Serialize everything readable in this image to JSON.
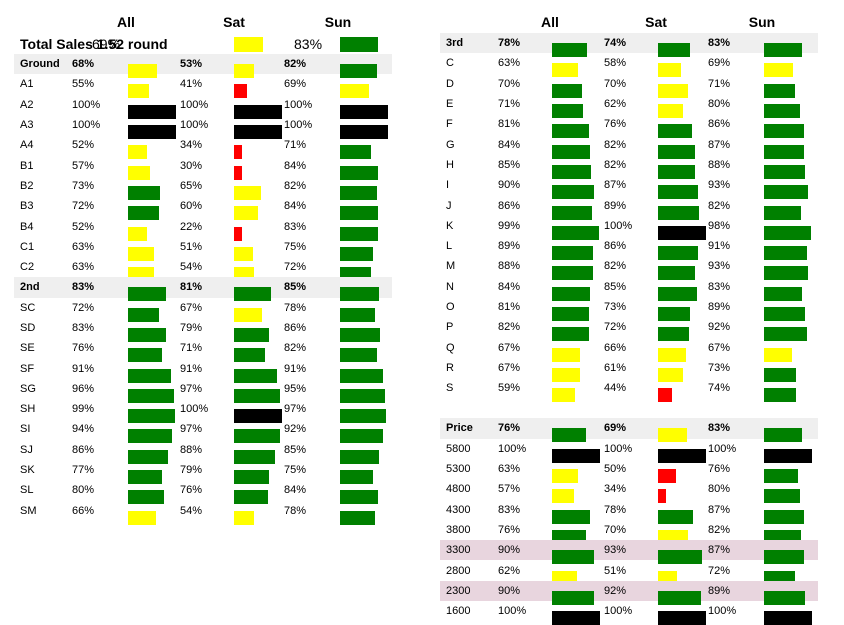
{
  "colors": {
    "green": "#008000",
    "yellow": "#ffff00",
    "red": "#ff0000",
    "black": "#000000"
  },
  "left": {
    "headers": {
      "all": "All",
      "sat": "Sat",
      "sun": "Sun"
    },
    "rows": [
      {
        "label": "Total Sales 1.52 round",
        "style": "total",
        "all": {
          "v": "69%",
          "c": "yellow",
          "f": 0.69
        },
        "sat": {
          "v": "",
          "c": "",
          "f": 0
        },
        "sun": {
          "v": "83%",
          "c": "green",
          "f": 0.83
        },
        "alt": {
          "all": null,
          "sat": {
            "c": "yellow",
            "f": 0.69
          }
        }
      },
      {
        "label": "Ground",
        "style": "bold shaded",
        "all": {
          "v": "68%",
          "c": "yellow",
          "f": 0.68
        },
        "sat": {
          "v": "53%",
          "c": "yellow",
          "f": 0.53
        },
        "sun": {
          "v": "82%",
          "c": "green",
          "f": 0.82
        }
      },
      {
        "label": "A1",
        "all": {
          "v": "55%",
          "c": "yellow",
          "f": 0.55
        },
        "sat": {
          "v": "41%",
          "c": "red",
          "f": 0.41
        },
        "sun": {
          "v": "69%",
          "c": "yellow",
          "f": 0.69
        }
      },
      {
        "label": "A2",
        "all": {
          "v": "100%",
          "c": "black",
          "f": 1.0
        },
        "sat": {
          "v": "100%",
          "c": "black",
          "f": 1.0
        },
        "sun": {
          "v": "100%",
          "c": "black",
          "f": 1.0
        }
      },
      {
        "label": "A3",
        "all": {
          "v": "100%",
          "c": "black",
          "f": 1.0
        },
        "sat": {
          "v": "100%",
          "c": "black",
          "f": 1.0
        },
        "sun": {
          "v": "100%",
          "c": "black",
          "f": 1.0
        }
      },
      {
        "label": "A4",
        "all": {
          "v": "52%",
          "c": "yellow",
          "f": 0.52
        },
        "sat": {
          "v": "34%",
          "c": "red",
          "f": 0.34
        },
        "sun": {
          "v": "71%",
          "c": "green",
          "f": 0.71
        }
      },
      {
        "label": "B1",
        "all": {
          "v": "57%",
          "c": "yellow",
          "f": 0.57
        },
        "sat": {
          "v": "30%",
          "c": "red",
          "f": 0.3
        },
        "sun": {
          "v": "84%",
          "c": "green",
          "f": 0.84
        }
      },
      {
        "label": "B2",
        "all": {
          "v": "73%",
          "c": "green",
          "f": 0.73
        },
        "sat": {
          "v": "65%",
          "c": "yellow",
          "f": 0.65
        },
        "sun": {
          "v": "82%",
          "c": "green",
          "f": 0.82
        }
      },
      {
        "label": "B3",
        "all": {
          "v": "72%",
          "c": "green",
          "f": 0.72
        },
        "sat": {
          "v": "60%",
          "c": "yellow",
          "f": 0.6
        },
        "sun": {
          "v": "84%",
          "c": "green",
          "f": 0.84
        }
      },
      {
        "label": "B4",
        "all": {
          "v": "52%",
          "c": "yellow",
          "f": 0.52
        },
        "sat": {
          "v": "22%",
          "c": "red",
          "f": 0.22
        },
        "sun": {
          "v": "83%",
          "c": "green",
          "f": 0.83
        }
      },
      {
        "label": "C1",
        "all": {
          "v": "63%",
          "c": "yellow",
          "f": 0.63
        },
        "sat": {
          "v": "51%",
          "c": "yellow",
          "f": 0.51
        },
        "sun": {
          "v": "75%",
          "c": "green",
          "f": 0.75
        }
      },
      {
        "label": "C2",
        "all": {
          "v": "63%",
          "c": "yellow",
          "f": 0.63
        },
        "sat": {
          "v": "54%",
          "c": "yellow",
          "f": 0.54
        },
        "sun": {
          "v": "72%",
          "c": "green",
          "f": 0.72
        }
      },
      {
        "label": "2nd",
        "style": "bold shaded",
        "all": {
          "v": "83%",
          "c": "green",
          "f": 0.83
        },
        "sat": {
          "v": "81%",
          "c": "green",
          "f": 0.81
        },
        "sun": {
          "v": "85%",
          "c": "green",
          "f": 0.85
        }
      },
      {
        "label": "SC",
        "all": {
          "v": "72%",
          "c": "green",
          "f": 0.72
        },
        "sat": {
          "v": "67%",
          "c": "yellow",
          "f": 0.67
        },
        "sun": {
          "v": "78%",
          "c": "green",
          "f": 0.78
        }
      },
      {
        "label": "SD",
        "all": {
          "v": "83%",
          "c": "green",
          "f": 0.83
        },
        "sat": {
          "v": "79%",
          "c": "green",
          "f": 0.79
        },
        "sun": {
          "v": "86%",
          "c": "green",
          "f": 0.86
        }
      },
      {
        "label": "SE",
        "all": {
          "v": "76%",
          "c": "green",
          "f": 0.76
        },
        "sat": {
          "v": "71%",
          "c": "green",
          "f": 0.71
        },
        "sun": {
          "v": "82%",
          "c": "green",
          "f": 0.82
        }
      },
      {
        "label": "SF",
        "all": {
          "v": "91%",
          "c": "green",
          "f": 0.91
        },
        "sat": {
          "v": "91%",
          "c": "green",
          "f": 0.91
        },
        "sun": {
          "v": "91%",
          "c": "green",
          "f": 0.91
        }
      },
      {
        "label": "SG",
        "all": {
          "v": "96%",
          "c": "green",
          "f": 0.96
        },
        "sat": {
          "v": "97%",
          "c": "green",
          "f": 0.97
        },
        "sun": {
          "v": "95%",
          "c": "green",
          "f": 0.95
        }
      },
      {
        "label": "SH",
        "all": {
          "v": "99%",
          "c": "green",
          "f": 0.99
        },
        "sat": {
          "v": "100%",
          "c": "black",
          "f": 1.0
        },
        "sun": {
          "v": "97%",
          "c": "green",
          "f": 0.97
        }
      },
      {
        "label": "SI",
        "all": {
          "v": "94%",
          "c": "green",
          "f": 0.94
        },
        "sat": {
          "v": "97%",
          "c": "green",
          "f": 0.97
        },
        "sun": {
          "v": "92%",
          "c": "green",
          "f": 0.92
        }
      },
      {
        "label": "SJ",
        "all": {
          "v": "86%",
          "c": "green",
          "f": 0.86
        },
        "sat": {
          "v": "88%",
          "c": "green",
          "f": 0.88
        },
        "sun": {
          "v": "85%",
          "c": "green",
          "f": 0.85
        }
      },
      {
        "label": "SK",
        "all": {
          "v": "77%",
          "c": "green",
          "f": 0.77
        },
        "sat": {
          "v": "79%",
          "c": "green",
          "f": 0.79
        },
        "sun": {
          "v": "75%",
          "c": "green",
          "f": 0.75
        }
      },
      {
        "label": "SL",
        "all": {
          "v": "80%",
          "c": "green",
          "f": 0.8
        },
        "sat": {
          "v": "76%",
          "c": "green",
          "f": 0.76
        },
        "sun": {
          "v": "84%",
          "c": "green",
          "f": 0.84
        }
      },
      {
        "label": "SM",
        "all": {
          "v": "66%",
          "c": "yellow",
          "f": 0.66
        },
        "sat": {
          "v": "54%",
          "c": "yellow",
          "f": 0.54
        },
        "sun": {
          "v": "78%",
          "c": "green",
          "f": 0.78
        }
      }
    ]
  },
  "right": {
    "headers": {
      "all": "All",
      "sat": "Sat",
      "sun": "Sun"
    },
    "rows": [
      {
        "label": "3rd",
        "style": "bold shaded",
        "all": {
          "v": "78%",
          "c": "green",
          "f": 0.78
        },
        "sat": {
          "v": "74%",
          "c": "green",
          "f": 0.74
        },
        "sun": {
          "v": "83%",
          "c": "green",
          "f": 0.83
        }
      },
      {
        "label": "C",
        "all": {
          "v": "63%",
          "c": "yellow",
          "f": 0.63
        },
        "sat": {
          "v": "58%",
          "c": "yellow",
          "f": 0.58
        },
        "sun": {
          "v": "69%",
          "c": "yellow",
          "f": 0.69
        }
      },
      {
        "label": "D",
        "all": {
          "v": "70%",
          "c": "green",
          "f": 0.7
        },
        "sat": {
          "v": "70%",
          "c": "yellow",
          "f": 0.7
        },
        "sun": {
          "v": "71%",
          "c": "green",
          "f": 0.71
        }
      },
      {
        "label": "E",
        "all": {
          "v": "71%",
          "c": "green",
          "f": 0.71
        },
        "sat": {
          "v": "62%",
          "c": "yellow",
          "f": 0.62
        },
        "sun": {
          "v": "80%",
          "c": "green",
          "f": 0.8
        }
      },
      {
        "label": "F",
        "all": {
          "v": "81%",
          "c": "green",
          "f": 0.81
        },
        "sat": {
          "v": "76%",
          "c": "green",
          "f": 0.76
        },
        "sun": {
          "v": "86%",
          "c": "green",
          "f": 0.86
        }
      },
      {
        "label": "G",
        "all": {
          "v": "84%",
          "c": "green",
          "f": 0.84
        },
        "sat": {
          "v": "82%",
          "c": "green",
          "f": 0.82
        },
        "sun": {
          "v": "87%",
          "c": "green",
          "f": 0.87
        }
      },
      {
        "label": "H",
        "all": {
          "v": "85%",
          "c": "green",
          "f": 0.85
        },
        "sat": {
          "v": "82%",
          "c": "green",
          "f": 0.82
        },
        "sun": {
          "v": "88%",
          "c": "green",
          "f": 0.88
        }
      },
      {
        "label": "I",
        "all": {
          "v": "90%",
          "c": "green",
          "f": 0.9
        },
        "sat": {
          "v": "87%",
          "c": "green",
          "f": 0.87
        },
        "sun": {
          "v": "93%",
          "c": "green",
          "f": 0.93
        }
      },
      {
        "label": "J",
        "all": {
          "v": "86%",
          "c": "green",
          "f": 0.86
        },
        "sat": {
          "v": "89%",
          "c": "green",
          "f": 0.89
        },
        "sun": {
          "v": "82%",
          "c": "green",
          "f": 0.82
        }
      },
      {
        "label": "K",
        "all": {
          "v": "99%",
          "c": "green",
          "f": 0.99
        },
        "sat": {
          "v": "100%",
          "c": "black",
          "f": 1.0
        },
        "sun": {
          "v": "98%",
          "c": "green",
          "f": 0.98
        }
      },
      {
        "label": "L",
        "all": {
          "v": "89%",
          "c": "green",
          "f": 0.89
        },
        "sat": {
          "v": "86%",
          "c": "green",
          "f": 0.86
        },
        "sun": {
          "v": "91%",
          "c": "green",
          "f": 0.91
        }
      },
      {
        "label": "M",
        "all": {
          "v": "88%",
          "c": "green",
          "f": 0.88
        },
        "sat": {
          "v": "82%",
          "c": "green",
          "f": 0.82
        },
        "sun": {
          "v": "93%",
          "c": "green",
          "f": 0.93
        }
      },
      {
        "label": "N",
        "all": {
          "v": "84%",
          "c": "green",
          "f": 0.84
        },
        "sat": {
          "v": "85%",
          "c": "green",
          "f": 0.85
        },
        "sun": {
          "v": "83%",
          "c": "green",
          "f": 0.83
        }
      },
      {
        "label": "O",
        "all": {
          "v": "81%",
          "c": "green",
          "f": 0.81
        },
        "sat": {
          "v": "73%",
          "c": "green",
          "f": 0.73
        },
        "sun": {
          "v": "89%",
          "c": "green",
          "f": 0.89
        }
      },
      {
        "label": "P",
        "all": {
          "v": "82%",
          "c": "green",
          "f": 0.82
        },
        "sat": {
          "v": "72%",
          "c": "green",
          "f": 0.72
        },
        "sun": {
          "v": "92%",
          "c": "green",
          "f": 0.92
        }
      },
      {
        "label": "Q",
        "all": {
          "v": "67%",
          "c": "yellow",
          "f": 0.67
        },
        "sat": {
          "v": "66%",
          "c": "yellow",
          "f": 0.66
        },
        "sun": {
          "v": "67%",
          "c": "yellow",
          "f": 0.67
        }
      },
      {
        "label": "R",
        "all": {
          "v": "67%",
          "c": "yellow",
          "f": 0.67
        },
        "sat": {
          "v": "61%",
          "c": "yellow",
          "f": 0.61
        },
        "sun": {
          "v": "73%",
          "c": "green",
          "f": 0.73
        }
      },
      {
        "label": "S",
        "all": {
          "v": "59%",
          "c": "yellow",
          "f": 0.59
        },
        "sat": {
          "v": "44%",
          "c": "red",
          "f": 0.44
        },
        "sun": {
          "v": "74%",
          "c": "green",
          "f": 0.74
        }
      },
      {
        "label": "",
        "style": "spacer"
      },
      {
        "label": "Price",
        "style": "bold shaded",
        "all": {
          "v": "76%",
          "c": "green",
          "f": 0.76
        },
        "sat": {
          "v": "69%",
          "c": "yellow",
          "f": 0.69
        },
        "sun": {
          "v": "83%",
          "c": "green",
          "f": 0.83
        }
      },
      {
        "label": "5800",
        "all": {
          "v": "100%",
          "c": "black",
          "f": 1.0
        },
        "sat": {
          "v": "100%",
          "c": "black",
          "f": 1.0
        },
        "sun": {
          "v": "100%",
          "c": "black",
          "f": 1.0
        }
      },
      {
        "label": "5300",
        "all": {
          "v": "63%",
          "c": "yellow",
          "f": 0.63
        },
        "sat": {
          "v": "50%",
          "c": "red",
          "f": 0.5
        },
        "sun": {
          "v": "76%",
          "c": "green",
          "f": 0.76
        }
      },
      {
        "label": "4800",
        "all": {
          "v": "57%",
          "c": "yellow",
          "f": 0.57
        },
        "sat": {
          "v": "34%",
          "c": "red",
          "f": 0.34
        },
        "sun": {
          "v": "80%",
          "c": "green",
          "f": 0.8
        }
      },
      {
        "label": "4300",
        "all": {
          "v": "83%",
          "c": "green",
          "f": 0.83
        },
        "sat": {
          "v": "78%",
          "c": "green",
          "f": 0.78
        },
        "sun": {
          "v": "87%",
          "c": "green",
          "f": 0.87
        }
      },
      {
        "label": "3800",
        "all": {
          "v": "76%",
          "c": "green",
          "f": 0.76
        },
        "sat": {
          "v": "70%",
          "c": "yellow",
          "f": 0.7
        },
        "sun": {
          "v": "82%",
          "c": "green",
          "f": 0.82
        }
      },
      {
        "label": "3300",
        "style": "pink",
        "all": {
          "v": "90%",
          "c": "green",
          "f": 0.9
        },
        "sat": {
          "v": "93%",
          "c": "green",
          "f": 0.93
        },
        "sun": {
          "v": "87%",
          "c": "green",
          "f": 0.87
        }
      },
      {
        "label": "2800",
        "all": {
          "v": "62%",
          "c": "yellow",
          "f": 0.62
        },
        "sat": {
          "v": "51%",
          "c": "yellow",
          "f": 0.51
        },
        "sun": {
          "v": "72%",
          "c": "green",
          "f": 0.72
        }
      },
      {
        "label": "2300",
        "style": "pink",
        "all": {
          "v": "90%",
          "c": "green",
          "f": 0.9
        },
        "sat": {
          "v": "92%",
          "c": "green",
          "f": 0.92
        },
        "sun": {
          "v": "89%",
          "c": "green",
          "f": 0.89
        }
      },
      {
        "label": "1600",
        "all": {
          "v": "100%",
          "c": "black",
          "f": 1.0
        },
        "sat": {
          "v": "100%",
          "c": "black",
          "f": 1.0
        },
        "sun": {
          "v": "100%",
          "c": "black",
          "f": 1.0
        }
      }
    ]
  }
}
